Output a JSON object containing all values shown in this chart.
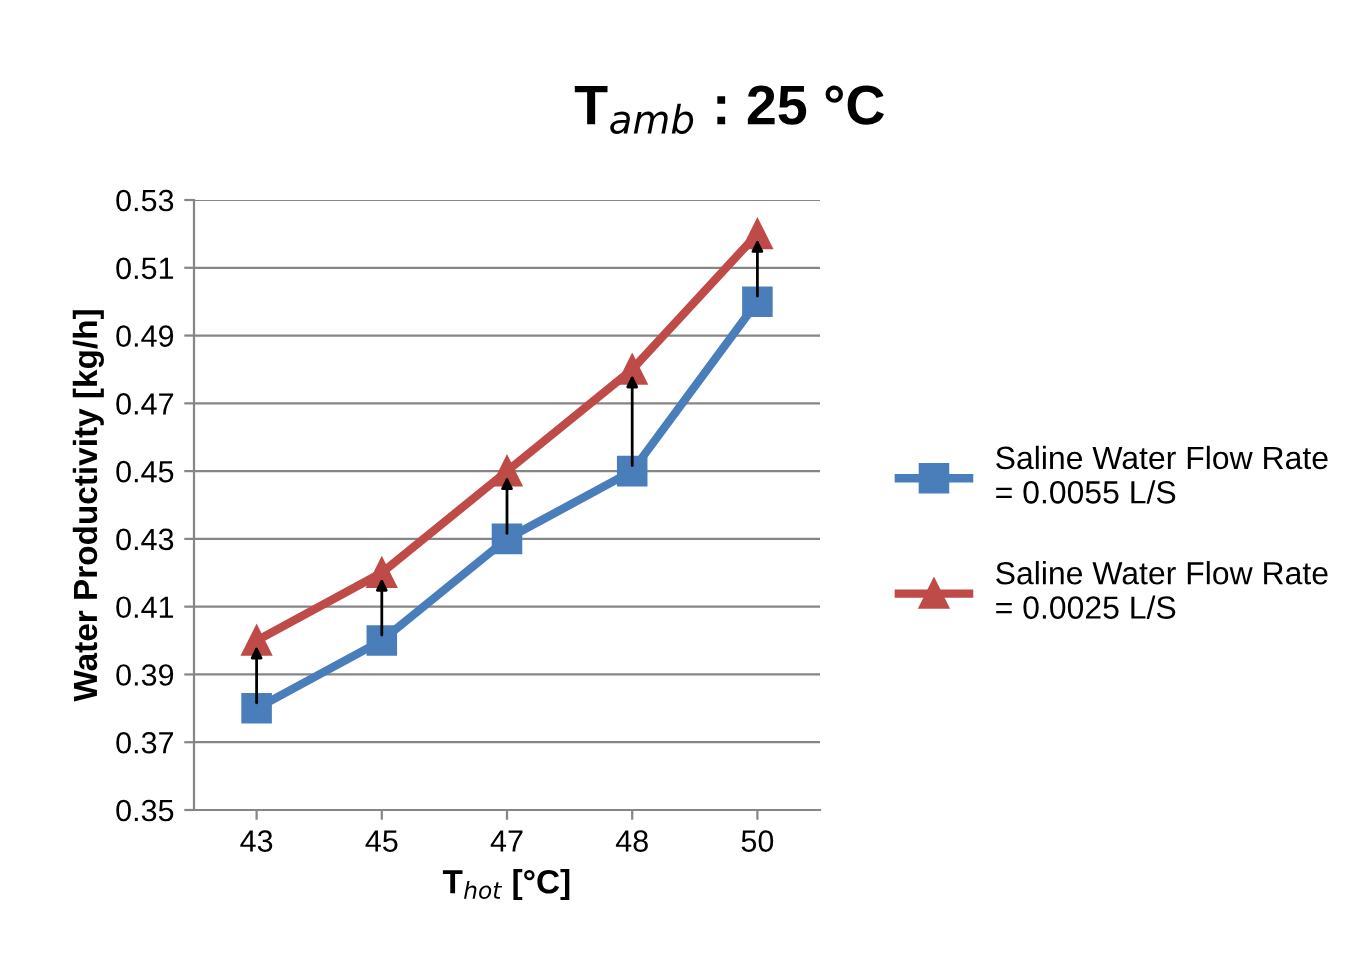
{
  "chart_data": {
    "type": "line",
    "title": "T$_{amb}$ : 25 °C",
    "xlabel": "T$_{hot}$ [°C]",
    "ylabel": "Water Productivity [kg/h]",
    "categories": [
      "43",
      "45",
      "47",
      "48",
      "50"
    ],
    "series": [
      {
        "name": "Saline Water Flow Rate\n= 0.0055 L/S",
        "color": "#4a7ebb",
        "marker": "square",
        "values": [
          0.38,
          0.4,
          0.43,
          0.45,
          0.5
        ]
      },
      {
        "name": "Saline Water Flow Rate\n= 0.0025 L/S",
        "color": "#be4b48",
        "marker": "triangle",
        "values": [
          0.4,
          0.42,
          0.45,
          0.48,
          0.52
        ]
      }
    ],
    "ylim": [
      0.35,
      0.53
    ],
    "yticks": [
      0.35,
      0.37,
      0.39,
      0.41,
      0.43,
      0.45,
      0.47,
      0.49,
      0.51,
      0.53
    ],
    "grid": "y",
    "legend": "right",
    "line_style": "solid"
  }
}
